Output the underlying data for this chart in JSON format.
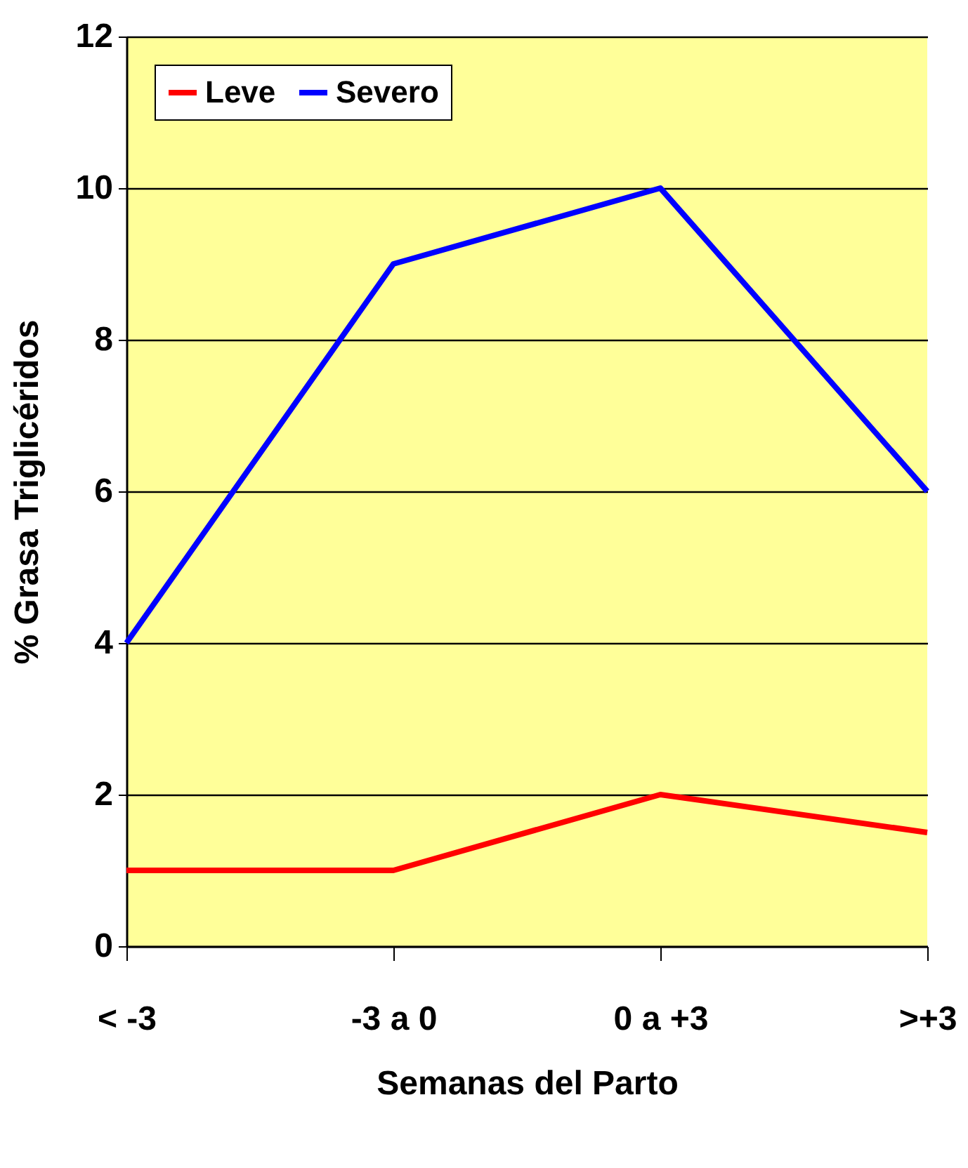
{
  "chart_data": {
    "type": "line",
    "xlabel": "Semanas del Parto",
    "ylabel": "% Grasa Triglicéridos",
    "categories": [
      "< -3",
      "-3 a 0",
      "0 a +3",
      ">+3"
    ],
    "series": [
      {
        "name": "Leve",
        "color": "#ff0000",
        "values": [
          1,
          1,
          2,
          1.5
        ]
      },
      {
        "name": "Severo",
        "color": "#0000ff",
        "values": [
          4,
          9,
          10,
          6
        ]
      }
    ],
    "ylim": [
      0,
      12
    ],
    "yticks": [
      0,
      2,
      4,
      6,
      8,
      10,
      12
    ],
    "grid": "y",
    "legend": "top left",
    "marker": "none",
    "line_style": "solid"
  }
}
